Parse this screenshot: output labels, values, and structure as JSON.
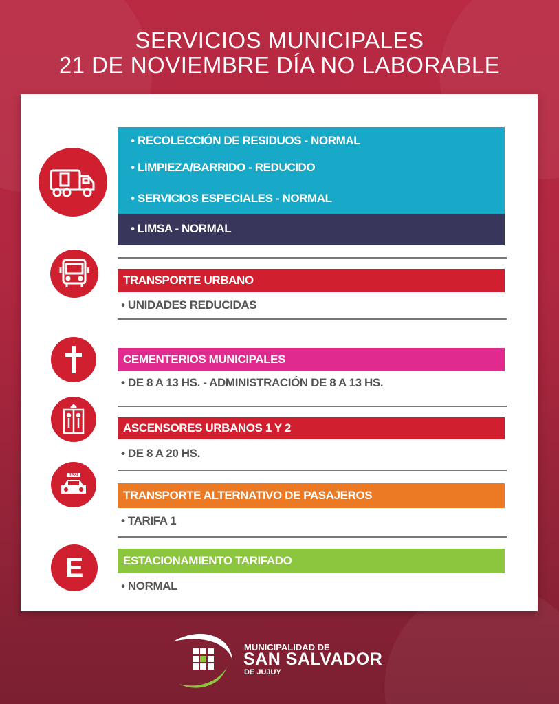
{
  "header": {
    "line1": "SERVICIOS MUNICIPALES",
    "line2": "21 DE NOVIEMBRE  DÍA NO LABORABLE"
  },
  "colors": {
    "background": "#b02740",
    "cyan": "#17a9c7",
    "navy": "#38365a",
    "red": "#d0202f",
    "magenta": "#e02a8e",
    "orange": "#ec7a24",
    "green": "#8cc63f"
  },
  "residuos": {
    "icon": "garbage-truck-icon",
    "items": [
      "• RECOLECCIÓN DE RESIDUOS - NORMAL",
      "• LIMPIEZA/BARRIDO - REDUCIDO",
      "• SERVICIOS ESPECIALES - NORMAL"
    ],
    "limsa": "• LIMSA - NORMAL"
  },
  "sections": [
    {
      "icon": "bus-icon",
      "title": "TRANSPORTE  URBANO",
      "detail": "• UNIDADES REDUCIDAS"
    },
    {
      "icon": "cross-icon",
      "title": "CEMENTERIOS MUNICIPALES",
      "detail": "• DE 8 A 13 HS. - ADMINISTRACIÓN DE 8 A 13 HS."
    },
    {
      "icon": "elevator-icon",
      "title": "ASCENSORES URBANOS  1 Y 2",
      "detail": "• DE 8 A 20 HS."
    },
    {
      "icon": "taxi-icon",
      "title": "TRANSPORTE ALTERNATIVO DE PASAJEROS",
      "detail": "• TARIFA 1",
      "badge": "TAXI"
    },
    {
      "icon": "parking-e-icon",
      "title": "ESTACIONAMIENTO TARIFADO",
      "detail": "• NORMAL",
      "letter": "E"
    }
  ],
  "footer": {
    "line1": "MUNICIPALIDAD DE",
    "line2": "SAN SALVADOR",
    "line3": "DE JUJUY"
  }
}
